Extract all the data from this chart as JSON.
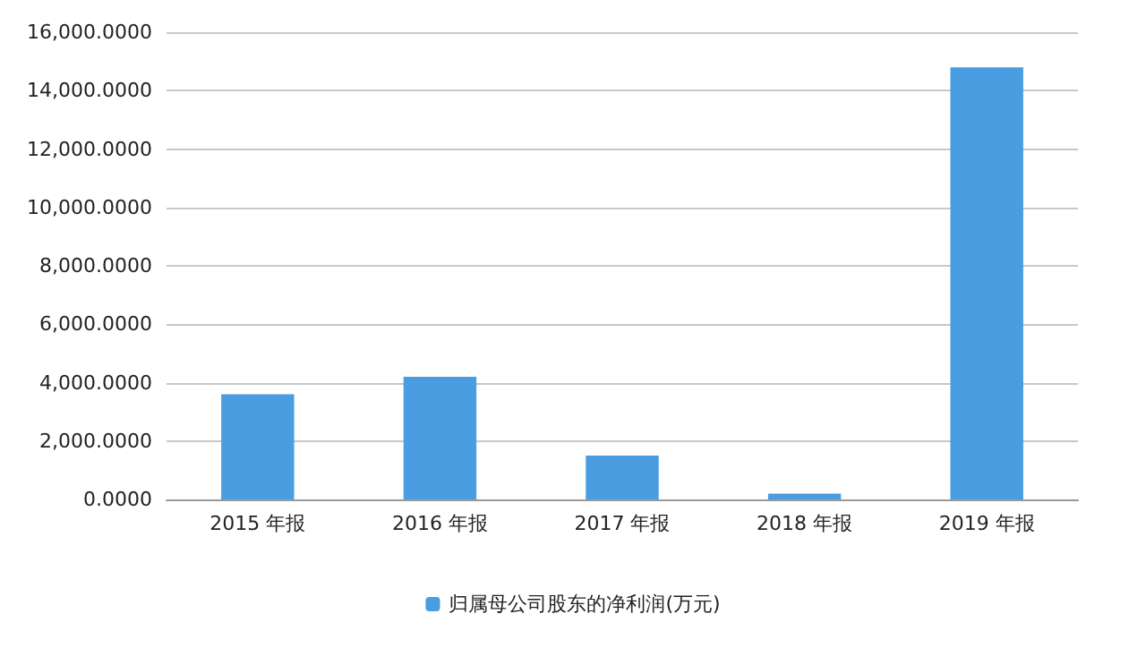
{
  "chart_data": {
    "type": "bar",
    "categories": [
      "2015 年报",
      "2016 年报",
      "2017 年报",
      "2018 年报",
      "2019 年报"
    ],
    "series": [
      {
        "name": "归属母公司股东的净利润(万元)",
        "color": "#4a9de0",
        "values": [
          3600,
          4200,
          1500,
          200,
          14800
        ]
      }
    ],
    "ylim": [
      0,
      16000
    ],
    "yticks": [
      {
        "value": 0,
        "label": "0.0000"
      },
      {
        "value": 2000,
        "label": "2,000.0000"
      },
      {
        "value": 4000,
        "label": "4,000.0000"
      },
      {
        "value": 6000,
        "label": "6,000.0000"
      },
      {
        "value": 8000,
        "label": "8,000.0000"
      },
      {
        "value": 10000,
        "label": "10,000.0000"
      },
      {
        "value": 12000,
        "label": "12,000.0000"
      },
      {
        "value": 14000,
        "label": "14,000.0000"
      },
      {
        "value": 16000,
        "label": "16,000.0000"
      }
    ],
    "grid": "y",
    "legend": "bottom"
  }
}
